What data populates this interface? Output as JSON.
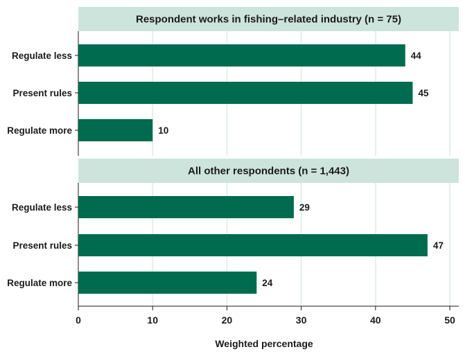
{
  "chart_data": {
    "type": "bar",
    "orientation": "horizontal",
    "xlabel": "Weighted percentage",
    "xlim": [
      0,
      50
    ],
    "xticks": [
      0,
      10,
      20,
      30,
      40,
      50
    ],
    "grid": true,
    "panels": [
      {
        "title": "Respondent works in fishing–related industry  (n = 75)",
        "categories": [
          "Regulate less",
          "Present rules",
          "Regulate more"
        ],
        "values": [
          44,
          45,
          10
        ],
        "labels": [
          "44",
          "45",
          "10"
        ]
      },
      {
        "title": "All other respondents  (n = 1,443)",
        "categories": [
          "Regulate less",
          "Present rules",
          "Regulate more"
        ],
        "values": [
          29,
          47,
          24
        ],
        "labels": [
          "29",
          "47",
          "24"
        ]
      }
    ],
    "colors": {
      "bar": "#006b4e",
      "strip": "#cde4dc",
      "grid": "#e3efeb",
      "axis": "#1a1a1a"
    }
  }
}
